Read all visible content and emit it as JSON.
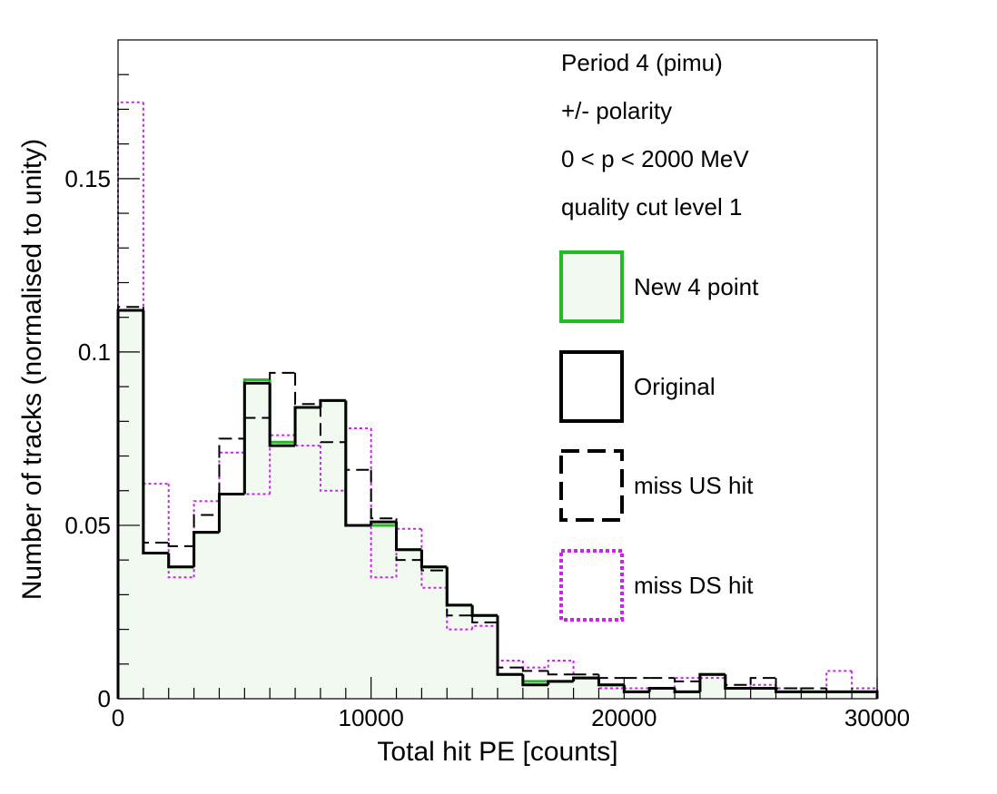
{
  "chart_data": {
    "type": "histogram",
    "title": "",
    "xlabel": "Total hit PE [counts]",
    "ylabel": "Number of tracks (normalised to unity)",
    "xlim": [
      0,
      30000
    ],
    "ylim": [
      0,
      0.19
    ],
    "grid": false,
    "bin_width": 1000,
    "bin_edges": [
      0,
      1000,
      2000,
      3000,
      4000,
      5000,
      6000,
      7000,
      8000,
      9000,
      10000,
      11000,
      12000,
      13000,
      14000,
      15000,
      16000,
      17000,
      18000,
      19000,
      20000,
      21000,
      22000,
      23000,
      24000,
      25000,
      26000,
      27000,
      28000,
      29000,
      30000
    ],
    "xticks": [
      {
        "value": 0,
        "label": "0"
      },
      {
        "value": 10000,
        "label": "10000"
      },
      {
        "value": 20000,
        "label": "20000"
      },
      {
        "value": 30000,
        "label": "30000"
      }
    ],
    "yticks": [
      {
        "value": 0,
        "label": "0"
      },
      {
        "value": 0.05,
        "label": "0.05"
      },
      {
        "value": 0.1,
        "label": "0.1"
      },
      {
        "value": 0.15,
        "label": "0.15"
      }
    ],
    "annotations": [
      "Period 4 (pimu)",
      "+/- polarity",
      "0 < p < 2000 MeV",
      "quality cut level 1"
    ],
    "legend_position": "right",
    "series": [
      {
        "name": "New 4 point",
        "style": "filled",
        "color": "#22bb22",
        "fill": "#f1f9f1",
        "values": [
          0.112,
          0.042,
          0.038,
          0.048,
          0.059,
          0.092,
          0.074,
          0.084,
          0.086,
          0.05,
          0.05,
          0.043,
          0.038,
          0.027,
          0.024,
          0.007,
          0.005,
          0.005,
          0.006,
          0.004,
          0.002,
          0.003,
          0.002,
          0.007,
          0.003,
          0.003,
          0.002,
          0.002,
          0.002,
          0.002
        ]
      },
      {
        "name": "Original",
        "style": "solid",
        "color": "#000000",
        "values": [
          0.112,
          0.042,
          0.038,
          0.048,
          0.059,
          0.091,
          0.073,
          0.084,
          0.086,
          0.05,
          0.051,
          0.043,
          0.038,
          0.027,
          0.024,
          0.007,
          0.004,
          0.005,
          0.006,
          0.004,
          0.002,
          0.003,
          0.002,
          0.007,
          0.003,
          0.003,
          0.002,
          0.002,
          0.002,
          0.002
        ]
      },
      {
        "name": "miss US hit",
        "style": "dashed",
        "color": "#000000",
        "values": [
          0.113,
          0.045,
          0.044,
          0.053,
          0.075,
          0.081,
          0.094,
          0.085,
          0.074,
          0.066,
          0.052,
          0.04,
          0.037,
          0.024,
          0.022,
          0.009,
          0.008,
          0.007,
          0.007,
          0.006,
          0.006,
          0.006,
          0.005,
          0.007,
          0.004,
          0.006,
          0.003,
          0.003,
          0.002,
          0.002
        ]
      },
      {
        "name": "miss DS hit",
        "style": "dotted",
        "color": "#cc22ee",
        "values": [
          0.172,
          0.062,
          0.035,
          0.057,
          0.071,
          0.059,
          0.076,
          0.073,
          0.06,
          0.078,
          0.035,
          0.049,
          0.032,
          0.02,
          0.021,
          0.011,
          0.009,
          0.011,
          0.006,
          0.003,
          0.003,
          0.003,
          0.006,
          0.006,
          0.003,
          0.004,
          0.003,
          0.002,
          0.008,
          0.003
        ]
      }
    ]
  }
}
